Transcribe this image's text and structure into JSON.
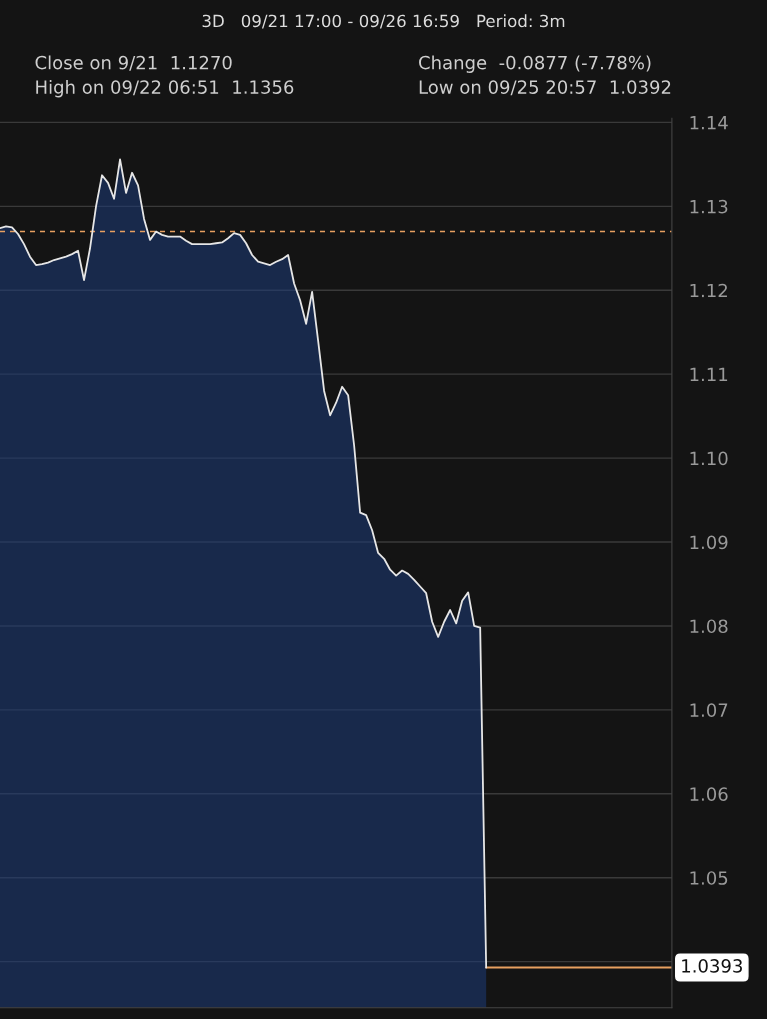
{
  "chart_data": {
    "type": "area",
    "title": "3D   09/21 17:00 - 09/26 16:59   Period: 3m",
    "annotations": [
      "Close on 9/21  1.1270",
      "Change  -0.0877 (-7.78%)",
      "High on 09/22 06:51  1.1356",
      "Low on 09/25 20:57  1.0392"
    ],
    "categories": [
      null,
      null,
      null,
      null,
      null,
      null,
      null,
      null,
      null,
      null,
      null,
      null,
      null,
      null,
      null,
      null,
      null,
      null,
      null,
      null,
      null,
      null,
      null,
      null,
      null,
      null,
      null,
      null,
      null,
      null,
      null,
      null,
      null,
      null,
      null,
      null,
      null,
      null,
      null,
      null,
      null,
      null,
      null,
      null,
      null,
      null,
      null,
      null,
      null,
      null,
      null,
      null,
      null,
      null,
      null,
      null,
      null,
      null,
      null,
      null,
      null,
      null,
      null,
      null,
      null,
      null,
      null,
      null,
      null,
      null,
      null,
      null,
      null,
      null,
      null,
      null,
      null,
      null,
      null,
      null,
      null,
      null
    ],
    "series": [
      {
        "color": "#e6e6e6",
        "values": [
          1.1274,
          1.1276,
          1.1275,
          1.1267,
          1.1255,
          1.124,
          1.123,
          1.1231,
          1.1233,
          1.1236,
          1.1238,
          1.124,
          1.1243,
          1.1247,
          1.1212,
          1.125,
          1.13,
          1.1337,
          1.1328,
          1.1309,
          1.1356,
          1.1316,
          1.134,
          1.1325,
          1.1285,
          1.126,
          1.127,
          1.1266,
          1.1264,
          1.1264,
          1.1264,
          1.1259,
          1.1255,
          1.1255,
          1.1255,
          1.1255,
          1.1256,
          1.1257,
          1.1262,
          1.1268,
          1.1266,
          1.1256,
          1.1242,
          1.1234,
          1.1232,
          1.123,
          1.1234,
          1.1237,
          1.1242,
          1.1208,
          1.1188,
          1.116,
          1.1198,
          1.114,
          1.108,
          1.1051,
          1.1066,
          1.1085,
          1.1075,
          1.1015,
          1.0935,
          1.0932,
          1.0914,
          1.0887,
          1.088,
          1.0867,
          1.086,
          1.0866,
          1.0862,
          1.0855,
          1.0847,
          1.0839,
          1.0805,
          1.0787,
          1.0805,
          1.0819,
          1.0803,
          1.083,
          1.084,
          1.08,
          1.0798,
          1.0393
        ]
      }
    ],
    "ylim": [
      1.0345,
      1.1405
    ],
    "yticks": [
      {
        "value": 1.04,
        "label": null
      },
      1.05,
      1.06,
      1.07,
      1.08,
      1.09,
      {
        "value": 1.1,
        "label": "1.10"
      },
      1.11,
      1.12,
      1.13,
      1.14
    ],
    "tick_labels": "y",
    "grid": "y",
    "ref_lines": [
      {
        "axis": "y",
        "value": 1.127,
        "color": "#e8a060",
        "line_style": "dashed"
      },
      {
        "axis": "y",
        "value": 1.0393,
        "label": "1.0393",
        "color": "#e8a060",
        "line_style": "solid"
      }
    ]
  }
}
